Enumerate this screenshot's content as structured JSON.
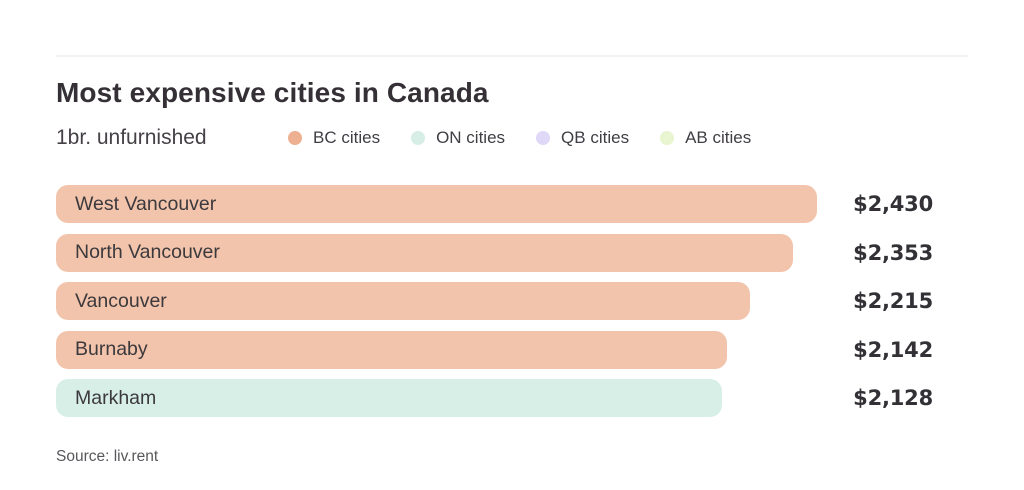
{
  "header": {
    "title": "Most expensive cities in Canada",
    "subtitle": "1br. unfurnished"
  },
  "legend": {
    "items": [
      {
        "label": "BC cities",
        "color": "#EDB091"
      },
      {
        "label": "ON cities",
        "color": "#D6EEE6"
      },
      {
        "label": "QB cities",
        "color": "#DFD8F6"
      },
      {
        "label": "AB cities",
        "color": "#E9F4D0"
      }
    ]
  },
  "source": "Source: liv.rent",
  "chart_data": {
    "type": "bar",
    "orientation": "horizontal",
    "title": "Most expensive cities in Canada",
    "subtitle": "1br. unfurnished",
    "categories": [
      "West Vancouver",
      "North Vancouver",
      "Vancouver",
      "Burnaby",
      "Markham"
    ],
    "values": [
      2430,
      2353,
      2215,
      2142,
      2128
    ],
    "value_labels": [
      "$2,430",
      "$2,353",
      "$2,215",
      "$2,142",
      "$2,128"
    ],
    "regions": [
      "BC",
      "BC",
      "BC",
      "BC",
      "ON"
    ],
    "bar_colors": [
      "#F2C4AB",
      "#F2C4AB",
      "#F2C4AB",
      "#F2C4AB",
      "#D8EFE8"
    ],
    "xlim": [
      0,
      2430
    ],
    "grid": false,
    "legend_position": "top",
    "legend_entries": [
      "BC cities",
      "ON cities",
      "QB cities",
      "AB cities"
    ],
    "legend_colors": [
      "#EDB091",
      "#D6EEE6",
      "#DFD8F6",
      "#E9F4D0"
    ],
    "value_label_position": "right-of-bar",
    "category_label_position": "inside-bar"
  }
}
